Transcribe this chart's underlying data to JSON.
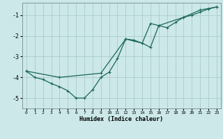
{
  "xlabel": "Humidex (Indice chaleur)",
  "bg_color": "#cce8e8",
  "grid_color": "#aacccc",
  "line_color": "#1a6655",
  "xlim": [
    -0.5,
    23.5
  ],
  "ylim": [
    -5.5,
    -0.4
  ],
  "xticks": [
    0,
    1,
    2,
    3,
    4,
    5,
    6,
    7,
    8,
    9,
    10,
    11,
    12,
    13,
    14,
    15,
    16,
    17,
    18,
    19,
    20,
    21,
    22,
    23
  ],
  "yticks": [
    -5,
    -4,
    -3,
    -2,
    -1
  ],
  "series1_x": [
    0,
    1,
    2,
    3,
    4,
    5,
    6,
    7,
    8,
    9,
    10,
    11,
    12,
    13,
    14,
    15,
    16,
    17,
    18,
    19,
    20,
    21,
    22,
    23
  ],
  "series1_y": [
    -3.7,
    -4.0,
    -4.1,
    -4.3,
    -4.45,
    -4.65,
    -5.0,
    -5.0,
    -4.6,
    -4.0,
    -3.75,
    -3.1,
    -2.15,
    -2.2,
    -2.35,
    -2.55,
    -1.5,
    -1.6,
    -1.35,
    -1.1,
    -1.0,
    -0.85,
    -0.7,
    -0.6
  ],
  "series2_x": [
    0,
    4,
    9,
    12,
    14,
    15,
    16,
    19,
    21,
    23
  ],
  "series2_y": [
    -3.7,
    -4.0,
    -3.8,
    -2.15,
    -2.35,
    -1.4,
    -1.5,
    -1.1,
    -0.75,
    -0.6
  ]
}
